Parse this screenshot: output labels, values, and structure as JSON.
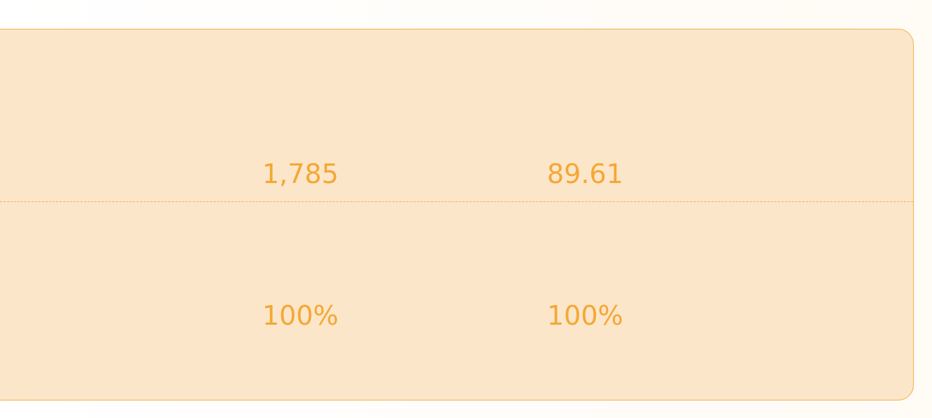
{
  "rows": [
    [
      "1,785",
      "89.61"
    ],
    [
      "100%",
      "100%"
    ]
  ]
}
